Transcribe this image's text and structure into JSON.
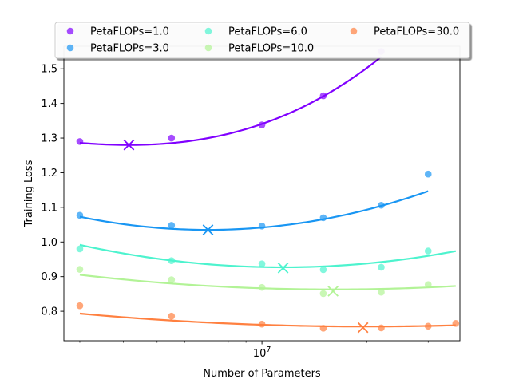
{
  "chart_data": {
    "type": "scatter",
    "xlabel": "Number of Parameters",
    "ylabel": "Training Loss",
    "xscale": "log",
    "xlim": [
      2700000,
      37000000
    ],
    "ylim": [
      0.715,
      1.565
    ],
    "x_major_ticks": [
      {
        "value": 10000000,
        "label": "10",
        "exponent": "7"
      }
    ],
    "x_minor_ticks": [
      3000000,
      4000000,
      5000000,
      6000000,
      7000000,
      8000000,
      9000000,
      20000000,
      30000000
    ],
    "y_ticks": [
      0.8,
      0.9,
      1.0,
      1.1,
      1.2,
      1.3,
      1.4,
      1.5
    ],
    "legend": {
      "placement": "top",
      "columns": 3
    },
    "series": [
      {
        "name": "PetaFLOPs=1.0",
        "color": "#8000ff",
        "points": [
          [
            3000000,
            1.29
          ],
          [
            5500000,
            1.3
          ],
          [
            10000000,
            1.338
          ],
          [
            15000000,
            1.422
          ],
          [
            22000000,
            1.55
          ]
        ],
        "fit": {
          "coeffs": [
            1.28,
            0.34,
            0.2
          ],
          "x0": 4150000,
          "x_range": [
            3000000,
            22000000
          ]
        },
        "optimum": [
          4150000,
          1.28
        ]
      },
      {
        "name": "PetaFLOPs=3.0",
        "color": "#1996f3",
        "points": [
          [
            3000000,
            1.077
          ],
          [
            5500000,
            1.048
          ],
          [
            10000000,
            1.046
          ],
          [
            15000000,
            1.07
          ],
          [
            22000000,
            1.106
          ],
          [
            30000000,
            1.196
          ]
        ],
        "fit": {
          "coeffs": [
            1.035,
            0.28,
            0.0
          ],
          "x0": 7000000,
          "x_range": [
            3000000,
            30000000
          ]
        },
        "optimum": [
          7000000,
          1.035
        ]
      },
      {
        "name": "PetaFLOPs=6.0",
        "color": "#4df3ce",
        "points": [
          [
            3000000,
            0.98
          ],
          [
            5500000,
            0.946
          ],
          [
            10000000,
            0.937
          ],
          [
            15000000,
            0.92
          ],
          [
            22000000,
            0.927
          ],
          [
            30000000,
            0.974
          ]
        ],
        "fit": {
          "coeffs": [
            0.927,
            0.19,
            0.0
          ],
          "x0": 11500000,
          "x_range": [
            3000000,
            36000000
          ]
        },
        "optimum": [
          11500000,
          0.925
        ]
      },
      {
        "name": "PetaFLOPs=10.0",
        "color": "#b2f396",
        "points": [
          [
            3000000,
            0.921
          ],
          [
            5500000,
            0.891
          ],
          [
            10000000,
            0.869
          ],
          [
            15000000,
            0.851
          ],
          [
            22000000,
            0.855
          ],
          [
            30000000,
            0.877
          ]
        ],
        "fit": {
          "coeffs": [
            0.863,
            0.08,
            0.0
          ],
          "x0": 16000000,
          "x_range": [
            3000000,
            36000000
          ]
        },
        "optimum": [
          16000000,
          0.858
        ]
      },
      {
        "name": "PetaFLOPs=30.0",
        "color": "#ff8040",
        "points": [
          [
            3000000,
            0.816
          ],
          [
            5500000,
            0.786
          ],
          [
            10000000,
            0.763
          ],
          [
            15000000,
            0.751
          ],
          [
            22000000,
            0.752
          ],
          [
            30000000,
            0.757
          ],
          [
            36000000,
            0.765
          ]
        ],
        "fit": {
          "coeffs": [
            0.756,
            0.055,
            0.0
          ],
          "x0": 20000000,
          "x_range": [
            3000000,
            36000000
          ]
        },
        "optimum": [
          19500000,
          0.753
        ]
      }
    ]
  }
}
